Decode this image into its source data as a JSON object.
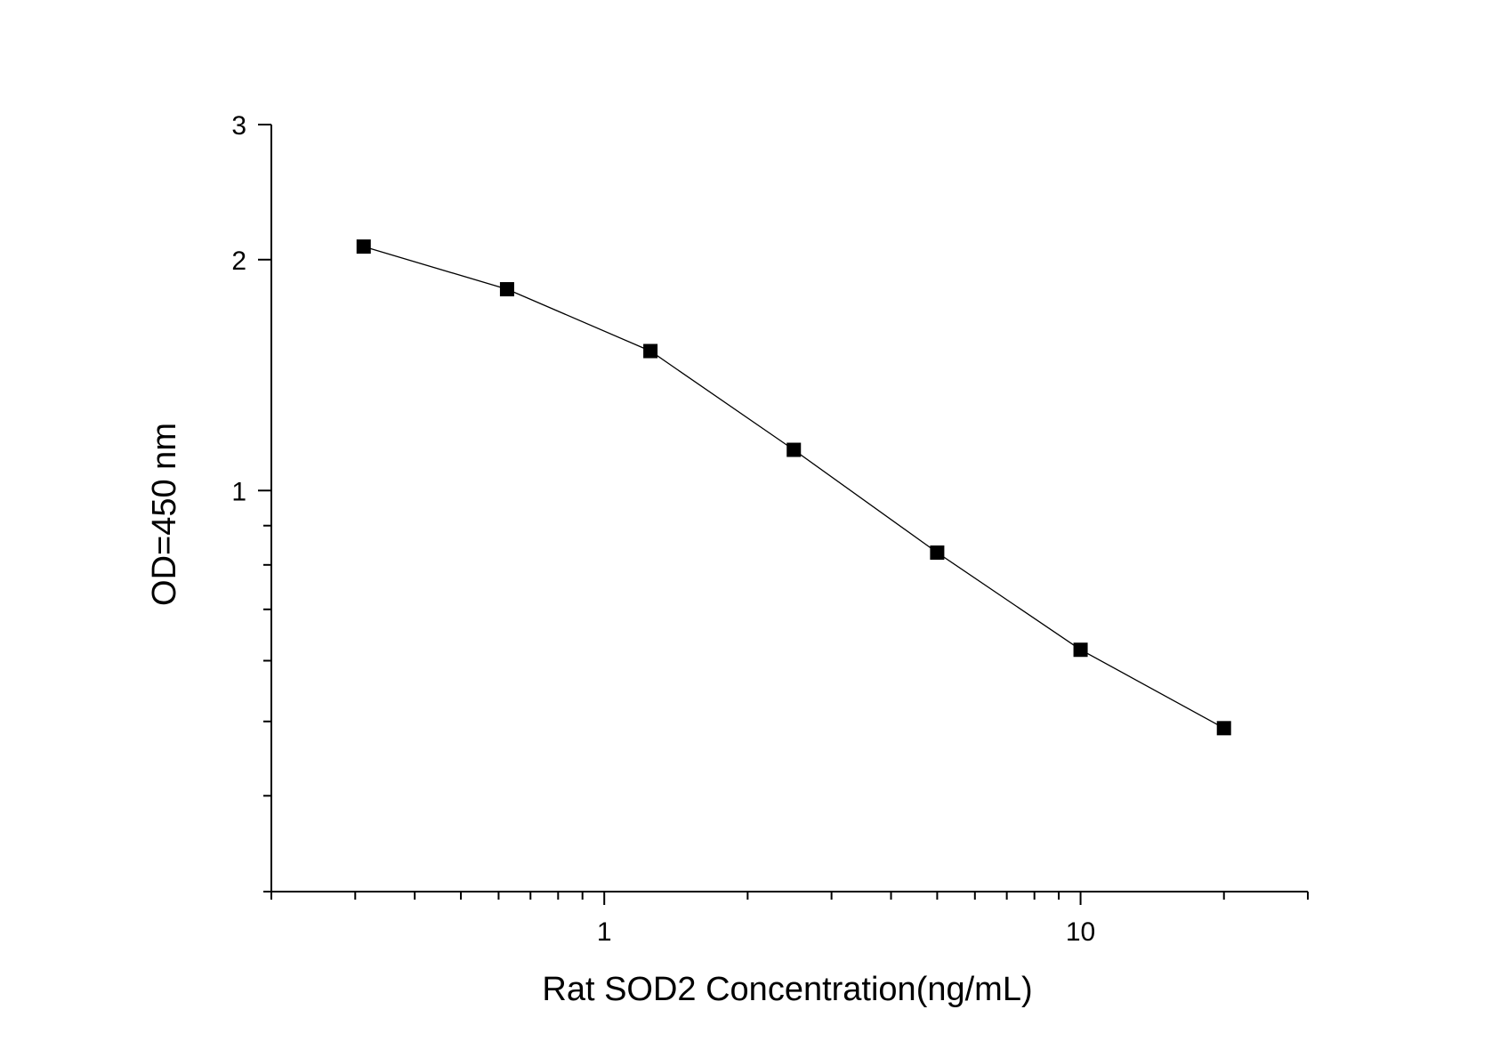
{
  "chart_data": {
    "type": "scatter",
    "xlabel": "Rat SOD2  Concentration(ng/mL)",
    "ylabel": "OD=450 nm",
    "x_scale": "log",
    "y_scale": "log",
    "xlim": [
      0.2,
      30
    ],
    "ylim": [
      0.3,
      3
    ],
    "x_major_ticks": [
      {
        "value": 1,
        "label": "1"
      },
      {
        "value": 10,
        "label": "10"
      }
    ],
    "y_major_ticks": [
      {
        "value": 1,
        "label": "1"
      },
      {
        "value": 2,
        "label": "2"
      },
      {
        "value": 3,
        "label": "3"
      }
    ],
    "grid": false,
    "marker": "square",
    "line": true,
    "series": [
      {
        "x": [
          0.3125,
          0.625,
          1.25,
          2.5,
          5,
          10,
          20
        ],
        "y": [
          2.08,
          1.83,
          1.52,
          1.13,
          0.83,
          0.62,
          0.49
        ]
      }
    ],
    "colors": {
      "marker": "#000000",
      "line": "#000000",
      "axis": "#000000"
    }
  }
}
